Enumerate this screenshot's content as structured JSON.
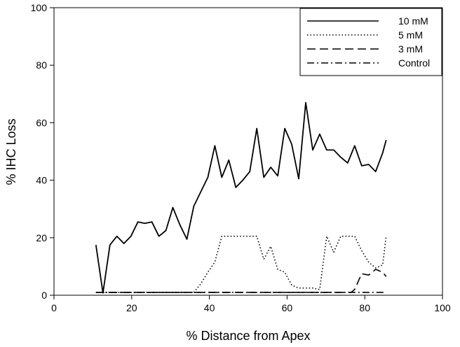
{
  "chart_data": {
    "type": "line",
    "title": "",
    "xlabel": "% Distance from Apex",
    "ylabel": "% IHC Loss",
    "xlim": [
      0,
      100
    ],
    "ylim": [
      0,
      100
    ],
    "xticks": [
      0,
      20,
      40,
      60,
      80,
      100
    ],
    "yticks": [
      0,
      20,
      40,
      60,
      80,
      100
    ],
    "grid": false,
    "legend_position": "top-right",
    "series": [
      {
        "name": "10 mM",
        "style": "solid",
        "color": "#000000",
        "x": [
          10.8,
          12.6,
          14.4,
          16.2,
          18.0,
          19.8,
          21.6,
          23.4,
          25.2,
          27.0,
          28.8,
          30.6,
          32.4,
          34.2,
          36.0,
          37.8,
          39.6,
          41.4,
          43.2,
          45.0,
          46.8,
          48.6,
          50.4,
          52.2,
          54.0,
          55.8,
          57.6,
          59.4,
          61.2,
          63.0,
          64.8,
          66.6,
          68.4,
          70.2,
          72.0,
          73.8,
          75.6,
          77.4,
          79.2,
          81.0,
          82.8,
          84.6,
          85.5
        ],
        "y": [
          17.5,
          0.8,
          17.5,
          20.5,
          18.0,
          20.5,
          25.5,
          25.0,
          25.5,
          20.5,
          22.5,
          30.5,
          24.5,
          19.5,
          31.0,
          36.0,
          41.0,
          52.0,
          41.0,
          47.0,
          37.5,
          40.0,
          43.0,
          58.0,
          41.0,
          44.5,
          41.5,
          58.0,
          52.5,
          40.5,
          67.0,
          50.5,
          56.0,
          50.5,
          50.5,
          48.0,
          46.0,
          52.0,
          45.0,
          45.5,
          43.0,
          49.5,
          54.0
        ]
      },
      {
        "name": "5 mM",
        "style": "dotted",
        "color": "#000000",
        "x": [
          10.8,
          36.0,
          37.8,
          39.6,
          41.4,
          43.2,
          45.0,
          46.8,
          48.6,
          50.4,
          52.2,
          54.0,
          55.8,
          57.6,
          59.4,
          61.2,
          63.0,
          64.8,
          66.6,
          68.4,
          70.2,
          72.0,
          73.8,
          75.6,
          77.4,
          79.2,
          81.0,
          82.8,
          84.6,
          85.5
        ],
        "y": [
          1.0,
          1.0,
          4.0,
          8.0,
          11.5,
          20.5,
          20.5,
          20.5,
          20.5,
          20.5,
          20.5,
          12.5,
          17.0,
          9.0,
          8.0,
          3.5,
          2.5,
          2.5,
          2.5,
          2.0,
          20.5,
          15.0,
          20.5,
          20.5,
          20.5,
          15.5,
          11.5,
          9.5,
          10.5,
          20.5
        ]
      },
      {
        "name": "3 mM",
        "style": "dashed",
        "color": "#000000",
        "x": [
          10.8,
          76.5,
          77.4,
          79.2,
          81.0,
          82.8,
          84.6,
          85.5
        ],
        "y": [
          1.0,
          1.0,
          2.0,
          7.5,
          7.0,
          9.0,
          8.0,
          6.5
        ]
      },
      {
        "name": "Control",
        "style": "dashdot",
        "color": "#000000",
        "x": [
          10.8,
          85.5
        ],
        "y": [
          1.0,
          1.0
        ]
      }
    ]
  }
}
